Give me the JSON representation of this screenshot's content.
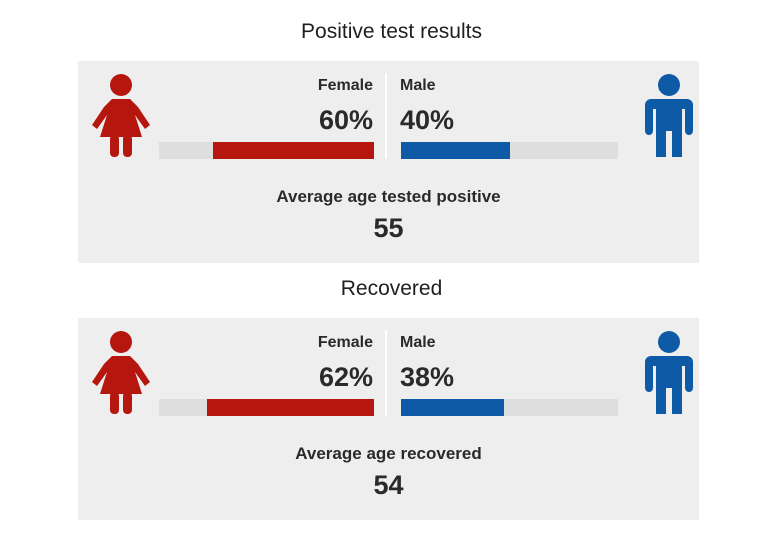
{
  "colors": {
    "female": "#b5160e",
    "male": "#0f5aa6",
    "track": "#dedede",
    "panel": "#eeeeee"
  },
  "icons": {
    "female": "female-person-icon",
    "male": "male-person-icon"
  },
  "chart_data": [
    {
      "type": "bar",
      "title": "Positive test results",
      "categories": [
        "Female",
        "Male"
      ],
      "series": [
        {
          "values": [
            60,
            40
          ]
        }
      ],
      "value_labels": [
        "60%",
        "40%"
      ],
      "unit": "%",
      "ylim": [
        0,
        100
      ],
      "average_label": "Average age tested positive",
      "average_value": "55"
    },
    {
      "type": "bar",
      "title": "Recovered",
      "categories": [
        "Female",
        "Male"
      ],
      "series": [
        {
          "values": [
            62,
            38
          ]
        }
      ],
      "value_labels": [
        "62%",
        "38%"
      ],
      "unit": "%",
      "ylim": [
        0,
        100
      ],
      "average_label": "Average age recovered",
      "average_value": "54"
    }
  ]
}
